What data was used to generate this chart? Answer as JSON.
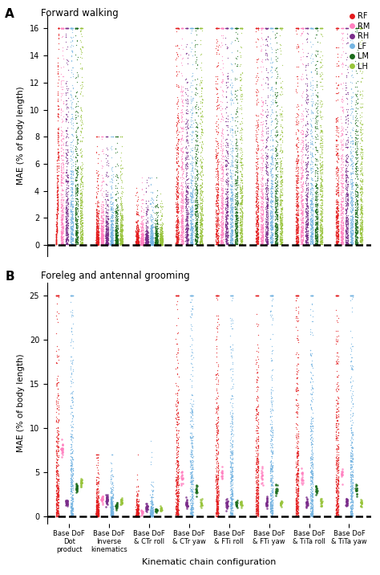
{
  "panel_A_title": "Forward walking",
  "panel_B_title": "Foreleg and antennal grooming",
  "xlabel": "Kinematic chain configuration",
  "ylabel": "MAE (% of body length)",
  "categories": [
    "Base DoF\nDot\nproduct",
    "Base DoF\nInverse\nkinematics",
    "Base DoF\n& CTr roll",
    "Base DoF\n& CTr yaw",
    "Base DoF\n& FTi roll",
    "Base DoF\n& FTi yaw",
    "Base DoF\n& TiTa roll",
    "Base DoF\n& TiTa yaw"
  ],
  "legend_labels": [
    "RF",
    "RM",
    "RH",
    "LF",
    "LM",
    "LH"
  ],
  "leg_colors": [
    "#e41a1c",
    "#ff80c0",
    "#7b2d8b",
    "#74b4e2",
    "#1a6b1a",
    "#98c43a"
  ],
  "panel_A_ylim": [
    -0.8,
    17
  ],
  "panel_B_ylim": [
    -0.8,
    26.5
  ],
  "panel_A_yticks": [
    0,
    2,
    4,
    6,
    8,
    10,
    12,
    14,
    16
  ],
  "panel_B_yticks": [
    0,
    5,
    10,
    15,
    20,
    25
  ],
  "background_color": "#ffffff",
  "violin_color": "#cccccc",
  "violin_alpha": 0.55,
  "seed": 42
}
